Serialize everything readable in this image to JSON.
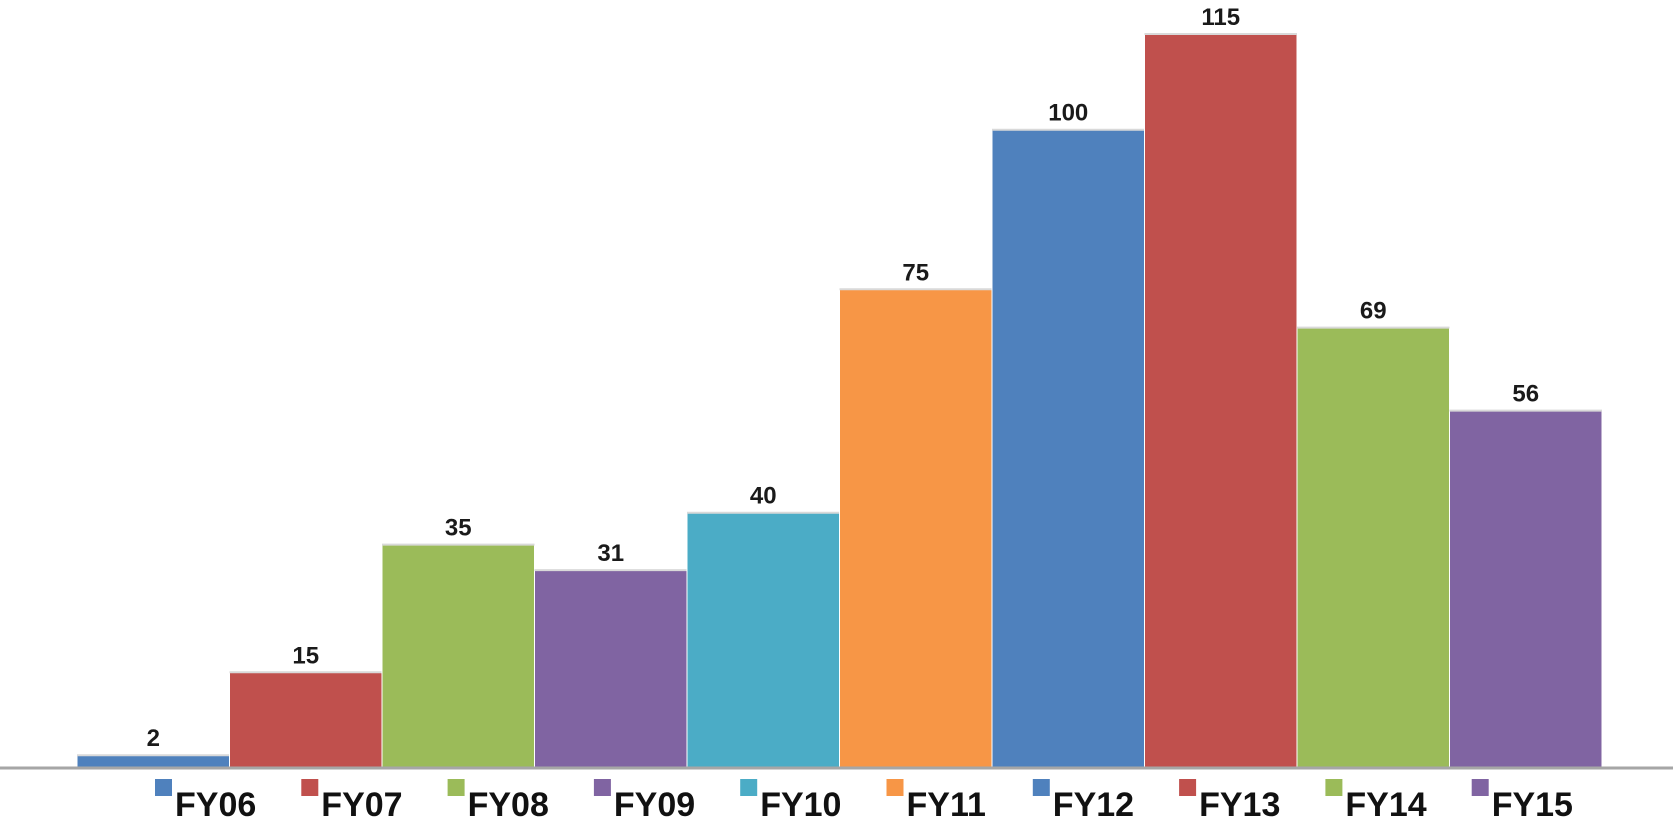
{
  "chart_data": {
    "type": "bar",
    "title": "",
    "xlabel": "",
    "ylabel": "",
    "ylim": [
      0,
      115
    ],
    "grid": false,
    "legend_position": "bottom",
    "data_labels": true,
    "series": [
      {
        "name": "FY06",
        "value": 2,
        "color": "#4f81bd"
      },
      {
        "name": "FY07",
        "value": 15,
        "color": "#c0504d"
      },
      {
        "name": "FY08",
        "value": 35,
        "color": "#9bbb59"
      },
      {
        "name": "FY09",
        "value": 31,
        "color": "#8064a2"
      },
      {
        "name": "FY10",
        "value": 40,
        "color": "#4bacc6"
      },
      {
        "name": "FY11",
        "value": 75,
        "color": "#f79646"
      },
      {
        "name": "FY12",
        "value": 100,
        "color": "#4f81bd"
      },
      {
        "name": "FY13",
        "value": 115,
        "color": "#c0504d"
      },
      {
        "name": "FY14",
        "value": 69,
        "color": "#9bbb59"
      },
      {
        "name": "FY15",
        "value": 56,
        "color": "#8064a2"
      }
    ]
  }
}
